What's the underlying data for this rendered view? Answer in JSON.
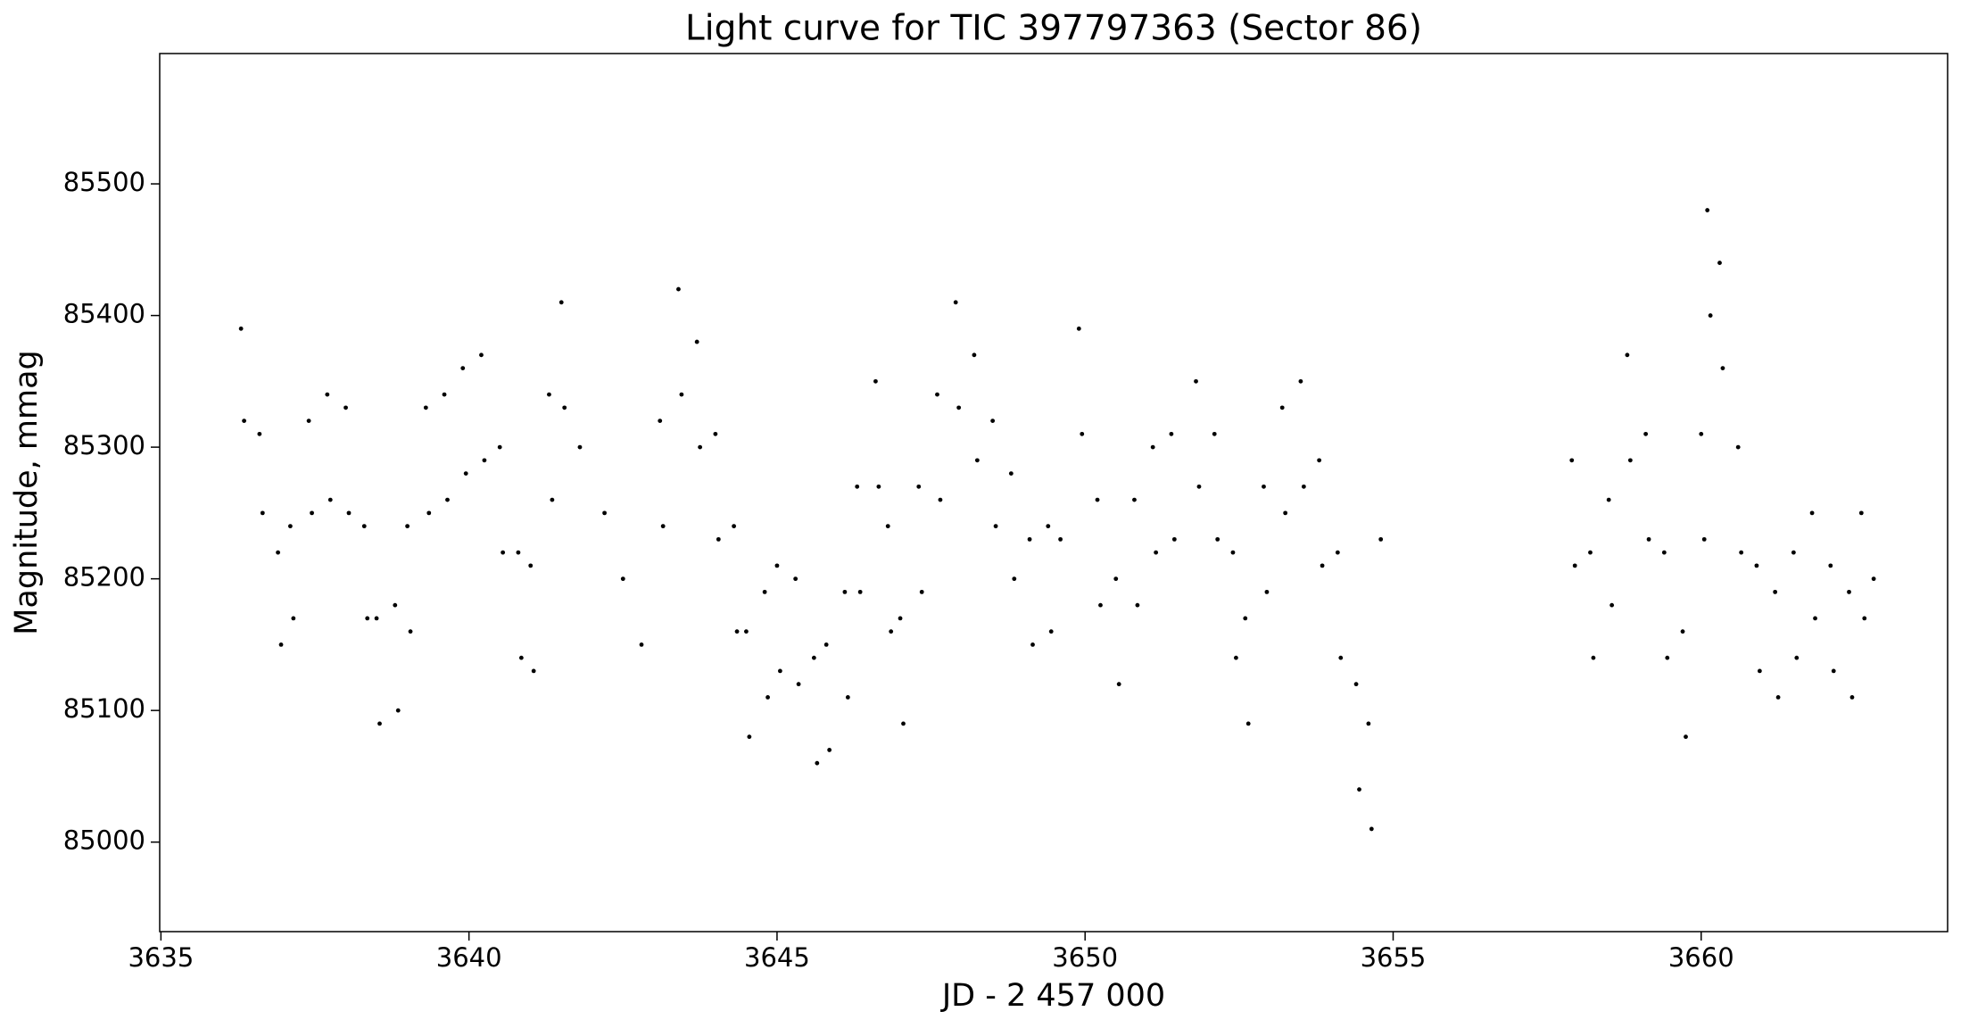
{
  "chart_data": {
    "type": "scatter",
    "title": "Light curve for TIC 397797363 (Sector 86)",
    "x_label": "JD - 2 457 000",
    "y_label": "Magnitude, mmag",
    "color": "#000000",
    "xlim": [
      3634.98,
      3664.0
    ],
    "ylim": [
      84932,
      85599
    ],
    "xticks": [
      3635,
      3640,
      3645,
      3650,
      3655,
      3660
    ],
    "yticks": [
      85000,
      85100,
      85200,
      85300,
      85400,
      85500
    ],
    "x": [
      3636.3,
      3636.35,
      3636.6,
      3636.65,
      3636.9,
      3636.95,
      3637.1,
      3637.15,
      3637.4,
      3637.45,
      3637.7,
      3637.75,
      3638.0,
      3638.05,
      3638.3,
      3638.35,
      3638.5,
      3638.55,
      3638.8,
      3638.85,
      3639.0,
      3639.05,
      3639.3,
      3639.35,
      3639.6,
      3639.65,
      3639.9,
      3639.95,
      3640.2,
      3640.25,
      3640.5,
      3640.55,
      3640.8,
      3640.85,
      3641.0,
      3641.05,
      3641.3,
      3641.35,
      3641.5,
      3641.55,
      3641.8,
      3642.2,
      3642.5,
      3642.8,
      3643.1,
      3643.15,
      3643.4,
      3643.45,
      3643.7,
      3643.75,
      3644.0,
      3644.05,
      3644.3,
      3644.35,
      3644.5,
      3644.55,
      3644.8,
      3644.85,
      3645.0,
      3645.05,
      3645.3,
      3645.35,
      3645.6,
      3645.65,
      3645.8,
      3645.85,
      3646.1,
      3646.15,
      3646.3,
      3646.35,
      3646.6,
      3646.65,
      3646.8,
      3646.85,
      3647.0,
      3647.05,
      3647.3,
      3647.35,
      3647.6,
      3647.65,
      3647.9,
      3647.95,
      3648.2,
      3648.25,
      3648.5,
      3648.55,
      3648.8,
      3648.85,
      3649.1,
      3649.15,
      3649.4,
      3649.45,
      3649.6,
      3649.9,
      3649.95,
      3650.2,
      3650.25,
      3650.5,
      3650.55,
      3650.8,
      3650.85,
      3651.1,
      3651.15,
      3651.4,
      3651.45,
      3651.8,
      3651.85,
      3652.1,
      3652.15,
      3652.4,
      3652.45,
      3652.6,
      3652.65,
      3652.9,
      3652.95,
      3653.2,
      3653.25,
      3653.5,
      3653.55,
      3653.8,
      3653.85,
      3654.1,
      3654.15,
      3654.4,
      3654.45,
      3654.6,
      3654.65,
      3654.8,
      3657.9,
      3657.95,
      3658.2,
      3658.25,
      3658.5,
      3658.55,
      3658.8,
      3658.85,
      3659.1,
      3659.15,
      3659.4,
      3659.45,
      3659.7,
      3659.75,
      3660.0,
      3660.05,
      3660.1,
      3660.15,
      3660.3,
      3660.35,
      3660.6,
      3660.65,
      3660.9,
      3660.95,
      3661.2,
      3661.25,
      3661.5,
      3661.55,
      3661.8,
      3661.85,
      3662.1,
      3662.15,
      3662.4,
      3662.45,
      3662.6,
      3662.65,
      3662.8
    ],
    "values": [
      85390,
      85320,
      85310,
      85250,
      85220,
      85150,
      85240,
      85170,
      85320,
      85250,
      85340,
      85260,
      85330,
      85250,
      85240,
      85170,
      85170,
      85090,
      85180,
      85100,
      85240,
      85160,
      85330,
      85250,
      85340,
      85260,
      85360,
      85280,
      85370,
      85290,
      85300,
      85220,
      85220,
      85140,
      85210,
      85130,
      85340,
      85260,
      85410,
      85330,
      85300,
      85250,
      85200,
      85150,
      85320,
      85240,
      85420,
      85340,
      85380,
      85300,
      85310,
      85230,
      85240,
      85160,
      85160,
      85080,
      85190,
      85110,
      85210,
      85130,
      85200,
      85120,
      85140,
      85060,
      85150,
      85070,
      85190,
      85110,
      85270,
      85190,
      85350,
      85270,
      85240,
      85160,
      85170,
      85090,
      85270,
      85190,
      85340,
      85260,
      85410,
      85330,
      85370,
      85290,
      85320,
      85240,
      85280,
      85200,
      85230,
      85150,
      85240,
      85160,
      85230,
      85390,
      85310,
      85260,
      85180,
      85200,
      85120,
      85260,
      85180,
      85300,
      85220,
      85310,
      85230,
      85350,
      85270,
      85310,
      85230,
      85220,
      85140,
      85170,
      85090,
      85270,
      85190,
      85330,
      85250,
      85350,
      85270,
      85290,
      85210,
      85220,
      85140,
      85120,
      85040,
      85090,
      85010,
      85230,
      85290,
      85210,
      85220,
      85140,
      85260,
      85180,
      85370,
      85290,
      85310,
      85230,
      85220,
      85140,
      85160,
      85080,
      85310,
      85230,
      85480,
      85400,
      85440,
      85360,
      85300,
      85220,
      85210,
      85130,
      85190,
      85110,
      85220,
      85140,
      85250,
      85170,
      85210,
      85130,
      85190,
      85110,
      85250,
      85170,
      85200
    ]
  }
}
